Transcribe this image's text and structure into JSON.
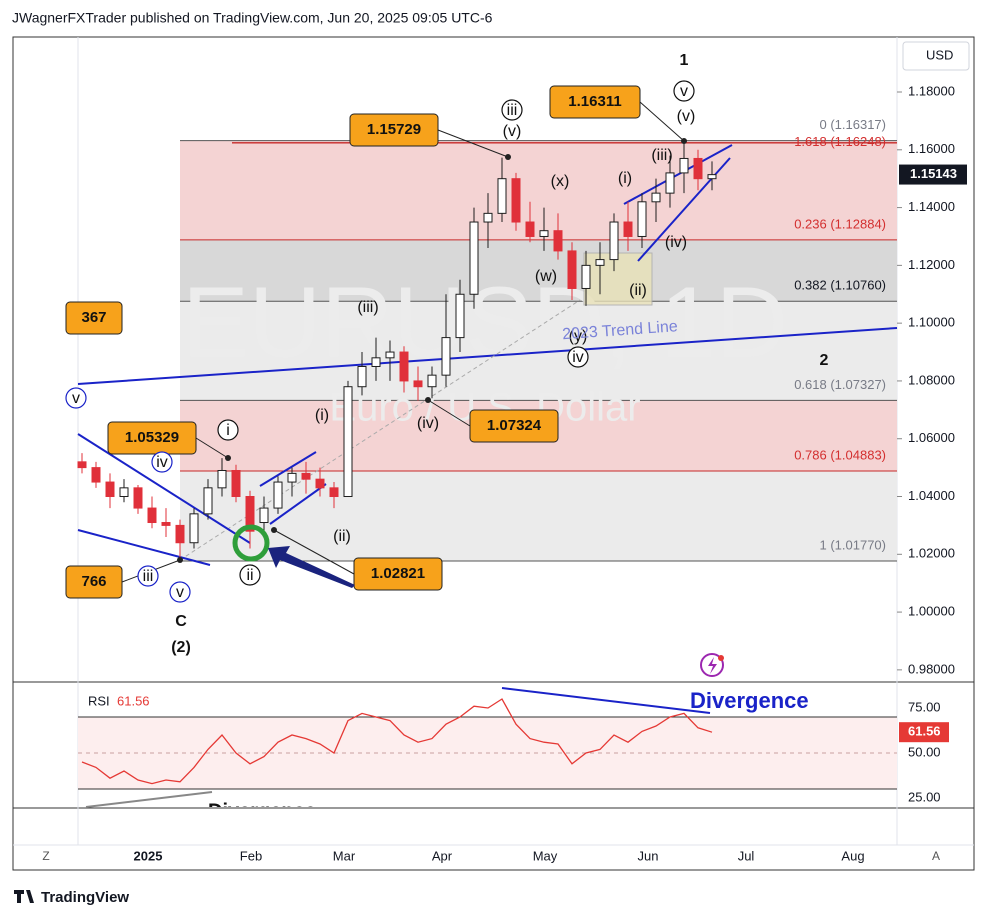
{
  "header": {
    "text": "JWagnerFXTrader published on TradingView.com, Jun 20, 2025 09:05 UTC-6"
  },
  "watermark": {
    "symbol": "EURUSD, 1D",
    "name": "Euro / U.S. Dollar"
  },
  "footer": {
    "brand": "TradingView",
    "left_button": "Z",
    "right_button": "A"
  },
  "chart_data": {
    "type": "candlestick",
    "currency": "USD",
    "ylim": [
      0.9758,
      1.198
    ],
    "yticks": [
      {
        "value": 0.98,
        "label": "0.98000"
      },
      {
        "value": 1.0,
        "label": "1.00000"
      },
      {
        "value": 1.02,
        "label": "1.02000"
      },
      {
        "value": 1.04,
        "label": "1.04000"
      },
      {
        "value": 1.06,
        "label": "1.06000"
      },
      {
        "value": 1.08,
        "label": "1.08000"
      },
      {
        "value": 1.1,
        "label": "1.10000"
      },
      {
        "value": 1.12,
        "label": "1.12000"
      },
      {
        "value": 1.14,
        "label": "1.14000"
      },
      {
        "value": 1.16,
        "label": "1.16000"
      },
      {
        "value": 1.18,
        "label": "1.18000"
      }
    ],
    "xticks": [
      "2025",
      "Feb",
      "Mar",
      "Apr",
      "May",
      "Jun",
      "Jul",
      "Aug"
    ],
    "up_color": "#1e1e1e",
    "down_color": "#e0303a",
    "candles": [
      [
        1.052,
        1.055,
        1.048,
        1.05
      ],
      [
        1.05,
        1.052,
        1.043,
        1.045
      ],
      [
        1.045,
        1.048,
        1.036,
        1.04
      ],
      [
        1.04,
        1.046,
        1.038,
        1.043
      ],
      [
        1.043,
        1.044,
        1.034,
        1.036
      ],
      [
        1.036,
        1.04,
        1.029,
        1.031
      ],
      [
        1.031,
        1.036,
        1.026,
        1.03
      ],
      [
        1.03,
        1.032,
        1.0177,
        1.024
      ],
      [
        1.024,
        1.036,
        1.022,
        1.034
      ],
      [
        1.034,
        1.046,
        1.032,
        1.043
      ],
      [
        1.043,
        1.0533,
        1.04,
        1.049
      ],
      [
        1.049,
        1.051,
        1.038,
        1.04
      ],
      [
        1.04,
        1.042,
        1.022,
        1.028
      ],
      [
        1.031,
        1.04,
        1.0282,
        1.036
      ],
      [
        1.036,
        1.047,
        1.034,
        1.045
      ],
      [
        1.045,
        1.05,
        1.04,
        1.048
      ],
      [
        1.048,
        1.052,
        1.041,
        1.046
      ],
      [
        1.046,
        1.05,
        1.04,
        1.043
      ],
      [
        1.043,
        1.045,
        1.036,
        1.04
      ],
      [
        1.04,
        1.08,
        1.04,
        1.078
      ],
      [
        1.078,
        1.09,
        1.075,
        1.085
      ],
      [
        1.085,
        1.095,
        1.08,
        1.088
      ],
      [
        1.088,
        1.094,
        1.08,
        1.09
      ],
      [
        1.09,
        1.092,
        1.076,
        1.08
      ],
      [
        1.08,
        1.085,
        1.0732,
        1.078
      ],
      [
        1.078,
        1.085,
        1.074,
        1.082
      ],
      [
        1.082,
        1.11,
        1.078,
        1.095
      ],
      [
        1.095,
        1.115,
        1.09,
        1.11
      ],
      [
        1.11,
        1.14,
        1.105,
        1.135
      ],
      [
        1.135,
        1.145,
        1.126,
        1.138
      ],
      [
        1.138,
        1.1573,
        1.135,
        1.15
      ],
      [
        1.15,
        1.152,
        1.132,
        1.135
      ],
      [
        1.135,
        1.142,
        1.128,
        1.13
      ],
      [
        1.13,
        1.14,
        1.125,
        1.132
      ],
      [
        1.132,
        1.138,
        1.122,
        1.125
      ],
      [
        1.125,
        1.128,
        1.108,
        1.112
      ],
      [
        1.112,
        1.125,
        1.106,
        1.12
      ],
      [
        1.12,
        1.128,
        1.11,
        1.122
      ],
      [
        1.122,
        1.138,
        1.118,
        1.135
      ],
      [
        1.135,
        1.142,
        1.125,
        1.13
      ],
      [
        1.13,
        1.145,
        1.126,
        1.142
      ],
      [
        1.142,
        1.15,
        1.135,
        1.145
      ],
      [
        1.145,
        1.158,
        1.14,
        1.152
      ],
      [
        1.152,
        1.1631,
        1.145,
        1.157
      ],
      [
        1.157,
        1.16,
        1.146,
        1.15
      ],
      [
        1.15,
        1.156,
        1.146,
        1.1514
      ]
    ],
    "last_price": {
      "value": 1.15143,
      "label": "1.15143"
    },
    "fib_levels": [
      {
        "label": "0 (1.16317)",
        "value": 1.16317,
        "color": "#787b86"
      },
      {
        "label": "1.618 (1.16248)",
        "value": 1.16248,
        "color": "#d32f2f"
      },
      {
        "label": "0.236 (1.12884)",
        "value": 1.12884,
        "color": "#d32f2f",
        "fill": "#f4d3d3"
      },
      {
        "label": "0.382 (1.10760)",
        "value": 1.1076,
        "color": "#131722",
        "fill": "#d8d8d8"
      },
      {
        "label": "0.618 (1.07327)",
        "value": 1.07327,
        "color": "#787b86",
        "fill": "#ebebeb"
      },
      {
        "label": "0.786 (1.04883)",
        "value": 1.04883,
        "color": "#d32f2f",
        "fill": "#f4d3d3"
      },
      {
        "label": "1 (1.01770)",
        "value": 1.0177,
        "color": "#787b86",
        "fill": "#ebebeb"
      }
    ],
    "price_callouts": [
      {
        "label": "1.16311",
        "value": 1.16311
      },
      {
        "label": "1.15729",
        "value": 1.15729
      },
      {
        "label": "367"
      },
      {
        "label": "1.05329",
        "value": 1.05329
      },
      {
        "label": "1.07324",
        "value": 1.07324
      },
      {
        "label": "1.02821",
        "value": 1.02821
      },
      {
        "label": "766"
      }
    ],
    "wave_labels": [
      "1",
      "v",
      "(v)",
      "iii",
      "(v)",
      "(x)",
      "(i)",
      "(iii)",
      "(iv)",
      "(w)",
      "(ii)",
      "(y)",
      "iv",
      "(iii)",
      "(i)",
      "(iv)",
      "i",
      "iv",
      "(ii)",
      "ii",
      "iii",
      "v",
      "C",
      "(2)",
      "2",
      "v"
    ],
    "annotations": {
      "trend_line": "2023 Trend Line",
      "divergence_top": "Divergence",
      "divergence_bottom": "Divergence"
    },
    "rsi": {
      "name": "RSI",
      "color": "#e53935",
      "ylim": [
        25,
        75
      ],
      "band": [
        30,
        70
      ],
      "yticks": [
        {
          "value": 75,
          "label": "75.00"
        },
        {
          "value": 50,
          "label": "50.00"
        },
        {
          "value": 25,
          "label": "25.00"
        }
      ],
      "values": [
        45,
        42,
        36,
        40,
        35,
        33,
        35,
        34,
        42,
        52,
        60,
        50,
        44,
        48,
        56,
        60,
        58,
        55,
        50,
        68,
        72,
        70,
        68,
        60,
        56,
        58,
        66,
        70,
        76,
        75,
        80,
        66,
        58,
        56,
        55,
        44,
        50,
        52,
        60,
        56,
        62,
        65,
        70,
        72,
        64,
        61.56
      ],
      "value_labels": {
        "45": "61.56"
      }
    }
  }
}
